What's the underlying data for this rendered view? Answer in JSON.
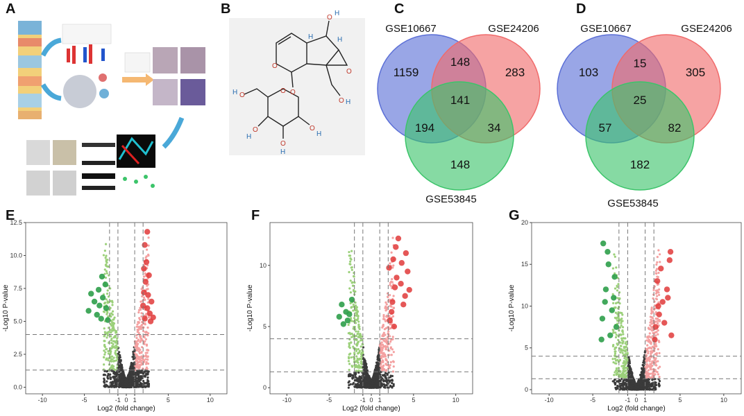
{
  "panels": {
    "a": "A",
    "b": "B",
    "c": "C",
    "d": "D",
    "e": "E",
    "f": "F",
    "g": "G"
  },
  "molecule": {
    "hydroxyl_labels": [
      "O",
      "H",
      "O",
      "H",
      "O",
      "H",
      "O",
      "H",
      "O",
      "H",
      "O",
      "H",
      "O",
      "O",
      "O",
      "H",
      "H"
    ]
  },
  "chart_data": [
    {
      "type": "venn",
      "panel": "C",
      "sets": [
        "GSE10667",
        "GSE24206",
        "GSE53845"
      ],
      "regions": {
        "only_a": 1159,
        "a_b": 148,
        "only_b": 283,
        "a_b_c": 141,
        "a_c": 194,
        "b_c": 34,
        "only_c": 148
      },
      "colors": [
        "#5b6fd6",
        "#f06a6a",
        "#3cc46a"
      ]
    },
    {
      "type": "venn",
      "panel": "D",
      "sets": [
        "GSE10667",
        "GSE24206",
        "GSE53845"
      ],
      "regions": {
        "only_a": 103,
        "a_b": 15,
        "only_b": 305,
        "a_b_c": 25,
        "a_c": 57,
        "b_c": 82,
        "only_c": 182
      },
      "colors": [
        "#5b6fd6",
        "#f06a6a",
        "#3cc46a"
      ]
    },
    {
      "type": "scatter",
      "panel": "E",
      "title": "",
      "xlabel": "Log2 (fold change)",
      "ylabel": "-Log10 P-value",
      "xlim": [
        -12,
        12
      ],
      "ylim": [
        -0.5,
        12.5
      ],
      "xticks": [
        -10,
        -5,
        -1,
        0,
        1,
        5,
        10
      ],
      "yticks": [
        "0.0",
        "2.5",
        "5.0",
        "7.5",
        "10.0",
        "12.5"
      ],
      "ytick_values": [
        0,
        2.5,
        5,
        7.5,
        10,
        12.5
      ],
      "vlines": [
        -2,
        -1,
        1,
        2
      ],
      "hlines": [
        1.3,
        4
      ],
      "ymax_data": 12,
      "sig_up": [
        [
          2.2,
          5.2
        ],
        [
          2.5,
          6.0
        ],
        [
          2.1,
          7.2
        ],
        [
          2.8,
          5.6
        ],
        [
          3.0,
          6.5
        ],
        [
          2.3,
          8.0
        ],
        [
          2.6,
          7.0
        ],
        [
          2.4,
          9.5
        ],
        [
          2.2,
          10.8
        ],
        [
          2.5,
          11.8
        ],
        [
          2.9,
          5.0
        ],
        [
          2.0,
          6.2
        ],
        [
          3.2,
          5.3
        ],
        [
          2.7,
          8.5
        ],
        [
          2.1,
          9.0
        ]
      ],
      "sig_down": [
        [
          -4.2,
          7.1
        ],
        [
          -3.5,
          5.5
        ],
        [
          -3.2,
          6.2
        ],
        [
          -2.8,
          6.8
        ],
        [
          -3.8,
          6.5
        ],
        [
          -2.5,
          7.8
        ],
        [
          -3.0,
          5.2
        ],
        [
          -4.5,
          5.8
        ],
        [
          -2.4,
          6.0
        ],
        [
          -3.3,
          7.4
        ],
        [
          -2.9,
          8.4
        ],
        [
          -2.2,
          5.1
        ]
      ]
    },
    {
      "type": "scatter",
      "panel": "F",
      "title": "",
      "xlabel": "Log2 (fold change)",
      "ylabel": "-Log10 P-value",
      "xlim": [
        -12,
        12
      ],
      "ylim": [
        -0.5,
        13.5
      ],
      "xticks": [
        -10,
        -5,
        -1,
        0,
        1,
        5,
        10
      ],
      "yticks": [
        "0",
        "5",
        "10"
      ],
      "ytick_values": [
        0,
        5,
        10
      ],
      "vlines": [
        -2,
        -1,
        1,
        2
      ],
      "hlines": [
        1.3,
        4
      ],
      "ymax_data": 12.5,
      "sig_up": [
        [
          2.2,
          5.5
        ],
        [
          2.5,
          7.0
        ],
        [
          2.8,
          8.2
        ],
        [
          3.0,
          9.0
        ],
        [
          3.5,
          8.5
        ],
        [
          4.0,
          7.5
        ],
        [
          4.3,
          9.5
        ],
        [
          2.6,
          10.5
        ],
        [
          2.9,
          11.5
        ],
        [
          3.2,
          12.2
        ],
        [
          2.4,
          6.2
        ],
        [
          3.8,
          6.8
        ],
        [
          4.5,
          8.0
        ],
        [
          2.1,
          9.8
        ],
        [
          3.6,
          10.2
        ],
        [
          2.7,
          5.0
        ],
        [
          4.1,
          11.0
        ]
      ],
      "sig_down": [
        [
          -3.5,
          6.8
        ],
        [
          -3.0,
          6.2
        ],
        [
          -3.8,
          5.8
        ],
        [
          -2.6,
          6.0
        ],
        [
          -3.3,
          5.2
        ],
        [
          -2.3,
          7.2
        ],
        [
          -2.8,
          5.5
        ]
      ]
    },
    {
      "type": "scatter",
      "panel": "G",
      "title": "",
      "xlabel": "Log2 (fold change)",
      "ylabel": "-Log10 P-value",
      "xlim": [
        -12,
        12
      ],
      "ylim": [
        -0.5,
        20
      ],
      "xticks": [
        -10,
        -5,
        -1,
        0,
        1,
        5,
        10
      ],
      "yticks": [
        "0",
        "5",
        "10",
        "15",
        "20"
      ],
      "ytick_values": [
        0,
        5,
        10,
        15,
        20
      ],
      "vlines": [
        -2,
        -1,
        1,
        2
      ],
      "hlines": [
        1.3,
        4
      ],
      "ymax_data": 17.5,
      "sig_up": [
        [
          2.2,
          7.5
        ],
        [
          2.6,
          9.0
        ],
        [
          3.0,
          10.5
        ],
        [
          3.5,
          12.0
        ],
        [
          3.8,
          15.5
        ],
        [
          2.4,
          13.0
        ],
        [
          3.2,
          8.0
        ],
        [
          4.0,
          6.5
        ],
        [
          2.8,
          14.5
        ],
        [
          3.6,
          11.0
        ],
        [
          2.1,
          6.0
        ],
        [
          3.9,
          16.5
        ],
        [
          2.5,
          10.0
        ]
      ],
      "sig_down": [
        [
          -3.8,
          17.5
        ],
        [
          -3.2,
          15.0
        ],
        [
          -3.5,
          12.0
        ],
        [
          -2.8,
          9.5
        ],
        [
          -3.9,
          8.5
        ],
        [
          -2.5,
          13.5
        ],
        [
          -3.0,
          6.5
        ],
        [
          -3.6,
          10.5
        ],
        [
          -2.3,
          7.5
        ],
        [
          -3.3,
          16.5
        ],
        [
          -4.0,
          6.0
        ],
        [
          -2.6,
          11.0
        ]
      ]
    }
  ]
}
